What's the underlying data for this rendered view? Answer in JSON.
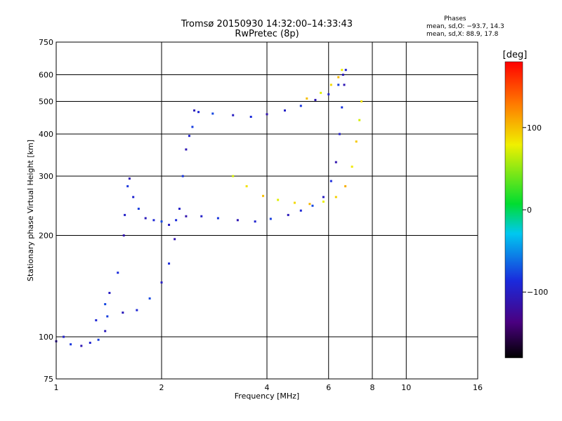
{
  "header": {
    "title_line1": "Tromsø 20150930 14:32:00–14:33:43",
    "title_line2": "RwPretec (8p)"
  },
  "phases": {
    "title": "Phases",
    "line_o": "mean, sd,O: −93.7, 14.3",
    "line_x": "mean, sd,X:  88.9, 17.8"
  },
  "chart_data": {
    "type": "scatter",
    "xlabel": "Frequency [MHz]",
    "ylabel": "Stationary phase Virtual Height [km]",
    "x_scale": "log",
    "y_scale": "log",
    "xlim": [
      1,
      16
    ],
    "ylim": [
      75,
      750
    ],
    "x_ticks": [
      1,
      2,
      4,
      6,
      8,
      10,
      16
    ],
    "y_ticks": [
      75,
      100,
      200,
      300,
      400,
      500,
      600,
      750
    ],
    "grid": true,
    "colorbar": {
      "label": "[deg]",
      "range": [
        -180,
        180
      ],
      "ticks": [
        100,
        0,
        -100
      ]
    },
    "series": [
      {
        "name": "O",
        "phase": -93.7,
        "points": [
          [
            1.0,
            97
          ],
          [
            1.05,
            100
          ],
          [
            1.1,
            95
          ],
          [
            1.18,
            94
          ],
          [
            1.25,
            96
          ],
          [
            1.32,
            98
          ],
          [
            1.38,
            104
          ],
          [
            1.3,
            112
          ],
          [
            1.38,
            125
          ],
          [
            1.42,
            135
          ],
          [
            1.5,
            155
          ],
          [
            1.56,
            200
          ],
          [
            1.57,
            230
          ],
          [
            1.6,
            280
          ],
          [
            1.62,
            295
          ],
          [
            1.66,
            260
          ],
          [
            1.72,
            240
          ],
          [
            1.8,
            225
          ],
          [
            1.9,
            222
          ],
          [
            2.0,
            220
          ],
          [
            2.1,
            215
          ],
          [
            2.2,
            222
          ],
          [
            2.35,
            228
          ],
          [
            2.6,
            228
          ],
          [
            2.9,
            225
          ],
          [
            3.3,
            222
          ],
          [
            3.7,
            220
          ],
          [
            4.1,
            224
          ],
          [
            4.6,
            230
          ],
          [
            5.0,
            237
          ],
          [
            5.4,
            245
          ],
          [
            5.8,
            260
          ],
          [
            6.1,
            290
          ],
          [
            6.3,
            330
          ],
          [
            6.45,
            400
          ],
          [
            6.55,
            480
          ],
          [
            6.65,
            560
          ],
          [
            6.72,
            620
          ],
          [
            1.4,
            115
          ],
          [
            1.55,
            118
          ],
          [
            1.7,
            120
          ],
          [
            1.85,
            130
          ],
          [
            2.0,
            145
          ],
          [
            2.1,
            165
          ],
          [
            2.18,
            195
          ],
          [
            2.25,
            240
          ],
          [
            2.3,
            300
          ],
          [
            2.35,
            360
          ],
          [
            2.4,
            395
          ],
          [
            2.45,
            420
          ],
          [
            2.48,
            470
          ],
          [
            2.55,
            465
          ],
          [
            2.8,
            460
          ],
          [
            3.2,
            455
          ],
          [
            3.6,
            450
          ],
          [
            4.0,
            458
          ],
          [
            4.5,
            470
          ],
          [
            5.0,
            485
          ],
          [
            5.5,
            505
          ],
          [
            6.0,
            525
          ],
          [
            6.4,
            560
          ],
          [
            6.6,
            600
          ]
        ]
      },
      {
        "name": "X",
        "phase": 88.9,
        "points": [
          [
            3.2,
            300
          ],
          [
            3.5,
            280
          ],
          [
            3.9,
            262
          ],
          [
            4.3,
            255
          ],
          [
            4.8,
            250
          ],
          [
            5.3,
            248
          ],
          [
            5.8,
            252
          ],
          [
            6.3,
            260
          ],
          [
            6.7,
            280
          ],
          [
            7.0,
            320
          ],
          [
            7.2,
            380
          ],
          [
            7.35,
            440
          ],
          [
            7.45,
            500
          ],
          [
            5.2,
            510
          ],
          [
            5.7,
            530
          ],
          [
            6.1,
            560
          ],
          [
            6.4,
            590
          ],
          [
            6.55,
            620
          ]
        ]
      }
    ]
  }
}
